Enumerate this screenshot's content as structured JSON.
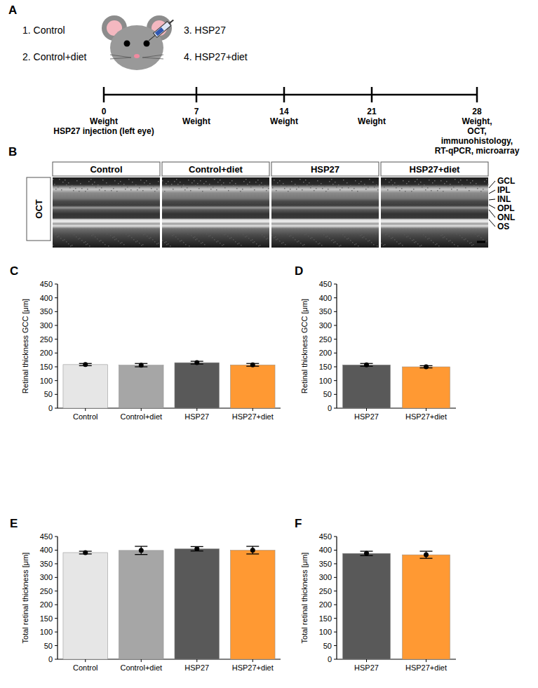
{
  "panel_labels": [
    "A",
    "B",
    "C",
    "D",
    "E",
    "F"
  ],
  "diagram": {
    "groups": [
      "1. Control",
      "2. Control+diet",
      "3. HSP27",
      "4. HSP27+diet"
    ],
    "timeline": [
      {
        "day": 0,
        "events": [
          "Weight",
          "HSP27 injection (left eye)"
        ]
      },
      {
        "day": 7,
        "events": [
          "Weight"
        ]
      },
      {
        "day": 14,
        "events": [
          "Weight"
        ]
      },
      {
        "day": 21,
        "events": [
          "Weight"
        ]
      },
      {
        "day": 28,
        "events": [
          "Weight,",
          "OCT,",
          "immunohistology,",
          "RT-qPCR, microarray"
        ]
      }
    ]
  },
  "oct": {
    "row_label": "OCT",
    "columns": [
      "Control",
      "Control+diet",
      "HSP27",
      "HSP27+diet"
    ],
    "layers": [
      "GCL",
      "IPL",
      "INL",
      "OPL",
      "ONL",
      "OS"
    ]
  },
  "chart_data": [
    {
      "type": "bar",
      "y_label": "Retinal thickness GCC [μm]",
      "categories": [
        "Control",
        "Control+diet",
        "HSP27",
        "HSP27+diet"
      ],
      "values": [
        158,
        156,
        165,
        157
      ],
      "errors": [
        4,
        6,
        5,
        5
      ],
      "colors": [
        "#e6e6e6",
        "#a6a6a6",
        "#595959",
        "#ff9933"
      ],
      "ylim": [
        0,
        450
      ],
      "yticks": [
        0,
        50,
        100,
        150,
        200,
        250,
        300,
        350,
        400,
        450
      ],
      "grid": false,
      "marker": "circle"
    },
    {
      "type": "bar",
      "y_label": "Retinal thickness GCC [μm]",
      "categories": [
        "HSP27",
        "HSP27+diet"
      ],
      "values": [
        157,
        150
      ],
      "errors": [
        5,
        4
      ],
      "colors": [
        "#595959",
        "#ff9933"
      ],
      "ylim": [
        0,
        450
      ],
      "yticks": [
        0,
        50,
        100,
        150,
        200,
        250,
        300,
        350,
        400,
        450
      ],
      "grid": false,
      "marker": "circle"
    },
    {
      "type": "bar",
      "y_label": "Total retinal thickness [μm]",
      "categories": [
        "Control",
        "Control+diet",
        "HSP27",
        "HSP27+diet"
      ],
      "values": [
        391,
        399,
        405,
        400
      ],
      "errors": [
        5,
        15,
        8,
        14
      ],
      "colors": [
        "#e6e6e6",
        "#a6a6a6",
        "#595959",
        "#ff9933"
      ],
      "ylim": [
        0,
        450
      ],
      "yticks": [
        0,
        50,
        100,
        150,
        200,
        250,
        300,
        350,
        400,
        450
      ],
      "grid": false,
      "marker": "circle"
    },
    {
      "type": "bar",
      "y_label": "Total retinal thickness [μm]",
      "categories": [
        "HSP27",
        "HSP27+diet"
      ],
      "values": [
        388,
        383
      ],
      "errors": [
        8,
        13
      ],
      "colors": [
        "#595959",
        "#ff9933"
      ],
      "ylim": [
        0,
        450
      ],
      "yticks": [
        0,
        50,
        100,
        150,
        200,
        250,
        300,
        350,
        400,
        450
      ],
      "grid": false,
      "marker": "circle"
    }
  ]
}
